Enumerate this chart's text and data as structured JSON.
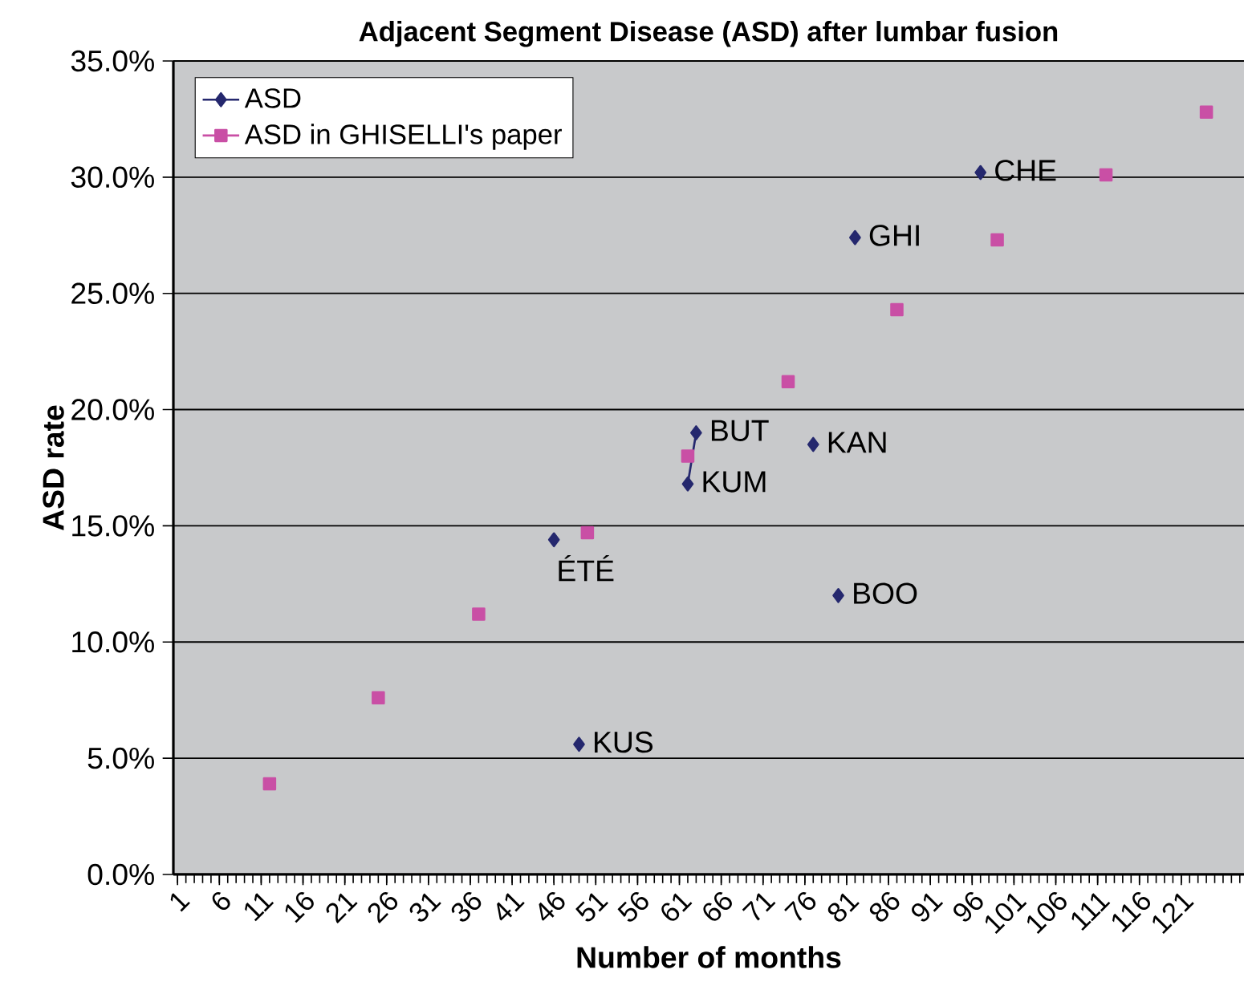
{
  "chart_data": {
    "type": "line",
    "title": "Adjacent Segment Disease (ASD) after lumbar fusion",
    "xlabel": "Number of months",
    "ylabel": "ASD rate",
    "xlim": [
      0.5,
      128.5
    ],
    "xticks": [
      1,
      6,
      11,
      16,
      21,
      26,
      31,
      36,
      41,
      46,
      51,
      56,
      61,
      66,
      71,
      76,
      81,
      86,
      91,
      96,
      101,
      106,
      111,
      116,
      121
    ],
    "ylim": [
      0,
      35
    ],
    "yticks": [
      {
        "value": 0,
        "label": "0.0%"
      },
      {
        "value": 5,
        "label": "5.0%"
      },
      {
        "value": 10,
        "label": "10.0%"
      },
      {
        "value": 15,
        "label": "15.0%"
      },
      {
        "value": 20,
        "label": "20.0%"
      },
      {
        "value": 25,
        "label": "25.0%"
      },
      {
        "value": 30,
        "label": "30.0%"
      },
      {
        "value": 35,
        "label": "35.0%"
      }
    ],
    "grid": "y",
    "legend": "top left",
    "line_style": "solid",
    "series": [
      {
        "name": "ASD",
        "color": "#25286e",
        "marker": "diamond",
        "x": [
          46,
          47,
          49,
          50,
          62,
          63,
          64,
          77,
          78,
          80,
          81,
          82,
          83,
          97
        ],
        "values": [
          14.4,
          null,
          5.6,
          null,
          16.8,
          19.0,
          null,
          18.5,
          null,
          12.0,
          null,
          27.4,
          null,
          30.2
        ]
      },
      {
        "name": "ASD in GHISELLI's paper",
        "color": "#c94fa5",
        "marker": "square",
        "x": [
          12,
          13,
          25,
          26,
          37,
          38,
          50,
          51,
          62,
          63,
          74,
          75,
          87,
          88,
          99,
          100,
          112,
          113,
          124
        ],
        "values": [
          3.9,
          null,
          7.6,
          null,
          11.2,
          null,
          14.7,
          null,
          18.0,
          null,
          21.2,
          null,
          24.3,
          null,
          27.3,
          null,
          30.1,
          null,
          32.8
        ]
      }
    ],
    "annotations": [
      {
        "text": "ÉTÉ",
        "x": 46,
        "y": 14.4
      },
      {
        "text": "KUS",
        "x": 49,
        "y": 5.6
      },
      {
        "text": "KUM",
        "x": 62,
        "y": 16.8
      },
      {
        "text": "BUT",
        "x": 63,
        "y": 19.0
      },
      {
        "text": "KAN",
        "x": 77,
        "y": 18.5
      },
      {
        "text": "BOO",
        "x": 80,
        "y": 12.0
      },
      {
        "text": "GHI",
        "x": 82,
        "y": 27.4
      },
      {
        "text": "CHE",
        "x": 97,
        "y": 30.2
      }
    ]
  }
}
